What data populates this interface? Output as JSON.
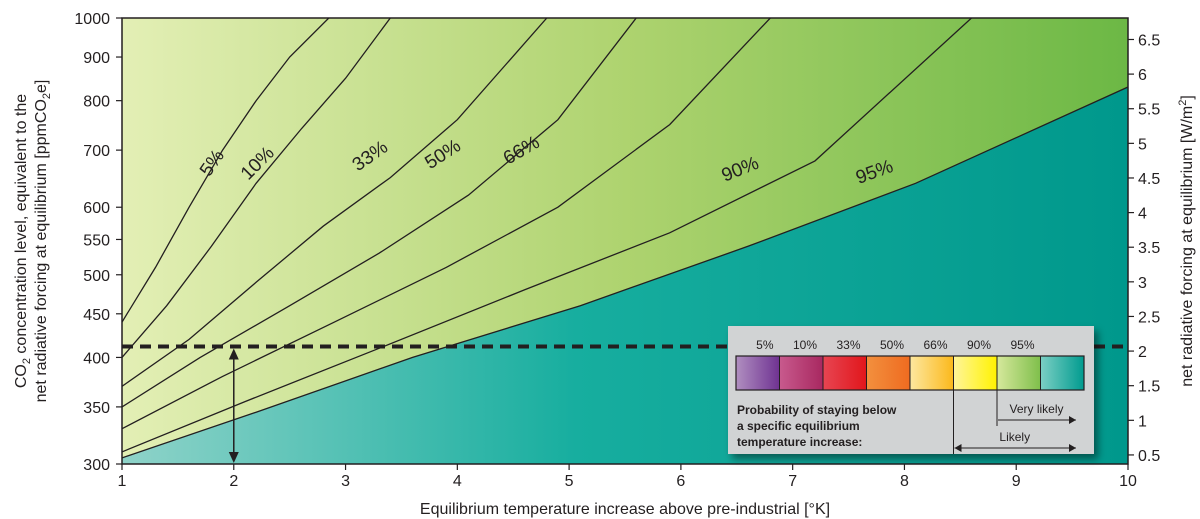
{
  "chart_data": {
    "type": "area",
    "xlabel": "Equilibrium temperature increase above pre-industrial [°K]",
    "ylabel_line1_pre": "CO",
    "ylabel_line1_sub": "2",
    "ylabel_line1_post": " concentration level, equivalent to the",
    "ylabel_line2_pre": "net radiative forcing at equilibrium [ppmCO",
    "ylabel_line2_sub": "2",
    "ylabel_line2_post": "e]",
    "y2label_pre": "net radiative forcing at equilibrium [W/m",
    "y2label_sup": "2",
    "y2label_post": "]",
    "xlim": [
      1,
      10
    ],
    "ylim": [
      300,
      1000
    ],
    "y_scale": "log",
    "x_ticks": [
      "1",
      "2",
      "3",
      "4",
      "5",
      "6",
      "7",
      "8",
      "9",
      "10"
    ],
    "y_ticks": [
      {
        "value": 300,
        "label": "300"
      },
      {
        "value": 350,
        "label": "350"
      },
      {
        "value": 400,
        "label": "400"
      },
      {
        "value": 450,
        "label": "450"
      },
      {
        "value": 500,
        "label": "500"
      },
      {
        "value": 550,
        "label": "550"
      },
      {
        "value": 600,
        "label": "600"
      },
      {
        "value": 700,
        "label": "700"
      },
      {
        "value": 800,
        "label": "800"
      },
      {
        "value": 900,
        "label": "900"
      },
      {
        "value": 1000,
        "label": "1000"
      }
    ],
    "y2_ticks": [
      {
        "forcing": 0.5,
        "label": "0.5"
      },
      {
        "forcing": 1,
        "label": "1"
      },
      {
        "forcing": 1.5,
        "label": "1.5"
      },
      {
        "forcing": 2,
        "label": "2"
      },
      {
        "forcing": 2.5,
        "label": "2.5"
      },
      {
        "forcing": 3,
        "label": "3"
      },
      {
        "forcing": 3.5,
        "label": "3.5"
      },
      {
        "forcing": 4,
        "label": "4"
      },
      {
        "forcing": 4.5,
        "label": "4.5"
      },
      {
        "forcing": 5,
        "label": "5"
      },
      {
        "forcing": 5.5,
        "label": "5.5"
      },
      {
        "forcing": 6,
        "label": "6"
      },
      {
        "forcing": 6.5,
        "label": "6.5"
      }
    ],
    "series": [
      {
        "name": "5%",
        "color": "#7a3596",
        "x": [
          1.0,
          1.3,
          1.6,
          1.9,
          2.2,
          2.5,
          2.85
        ],
        "y": [
          440,
          510,
          600,
          700,
          800,
          900,
          1000
        ]
      },
      {
        "name": "10%",
        "color": "#b42a6a",
        "x": [
          1.0,
          1.4,
          1.8,
          2.2,
          2.6,
          3.0,
          3.4
        ],
        "y": [
          400,
          460,
          540,
          640,
          740,
          850,
          1000
        ]
      },
      {
        "name": "33%",
        "color": "#e62129",
        "x": [
          1.0,
          1.6,
          2.2,
          2.8,
          3.4,
          4.0,
          4.8
        ],
        "y": [
          370,
          420,
          490,
          570,
          650,
          760,
          1000
        ]
      },
      {
        "name": "50%",
        "color": "#f0792b",
        "x": [
          1.0,
          1.7,
          2.5,
          3.3,
          4.1,
          4.9,
          5.6
        ],
        "y": [
          350,
          400,
          460,
          530,
          620,
          760,
          1000
        ]
      },
      {
        "name": "66%",
        "color": "#fbb81b",
        "x": [
          1.0,
          1.9,
          2.9,
          3.9,
          4.9,
          5.9,
          6.8
        ],
        "y": [
          330,
          380,
          440,
          510,
          600,
          750,
          1000
        ]
      },
      {
        "name": "90%",
        "color": "#fff200",
        "x": [
          1.0,
          2.1,
          3.3,
          4.6,
          5.9,
          7.2,
          8.6
        ],
        "y": [
          310,
          355,
          410,
          480,
          560,
          680,
          1000
        ]
      },
      {
        "name": "95%",
        "color": "#9fce63",
        "x": [
          1.0,
          2.2,
          3.6,
          5.1,
          6.6,
          8.1,
          10.0
        ],
        "y": [
          305,
          345,
          400,
          460,
          540,
          640,
          830
        ]
      }
    ],
    "region_colors": {
      "above_5": "#6f3292",
      "above_95": "#009b8f"
    },
    "contour_labels": [
      {
        "text": "5%",
        "x": 1.85,
        "y": 670,
        "angle": -55
      },
      {
        "text": "10%",
        "x": 2.25,
        "y": 668,
        "angle": -45
      },
      {
        "text": "33%",
        "x": 3.25,
        "y": 680,
        "angle": -35
      },
      {
        "text": "50%",
        "x": 3.9,
        "y": 683,
        "angle": -33
      },
      {
        "text": "66%",
        "x": 4.6,
        "y": 690,
        "angle": -30
      },
      {
        "text": "90%",
        "x": 6.55,
        "y": 655,
        "angle": -22
      },
      {
        "text": "95%",
        "x": 7.75,
        "y": 650,
        "angle": -20
      }
    ],
    "reference_line": {
      "y": 412,
      "arrow_x": 2,
      "style": "dashed"
    },
    "legend": {
      "labels": [
        "5%",
        "10%",
        "33%",
        "50%",
        "66%",
        "90%",
        "95%"
      ],
      "swatches": [
        [
          "#b08fc0",
          "#6f3292"
        ],
        [
          "#c85a8d",
          "#a82860"
        ],
        [
          "#e74552",
          "#e1161b"
        ],
        [
          "#f2903e",
          "#ef6b20"
        ],
        [
          "#fde8a0",
          "#fbb81b"
        ],
        [
          "#fff59a",
          "#fff200"
        ],
        [
          "#d6e89c",
          "#7fbf4b"
        ],
        [
          "#7ccfc4",
          "#009b8f"
        ]
      ],
      "caption": [
        "Probability of staying below",
        "a specific equilibrium",
        "temperature increase:"
      ],
      "very_likely": "Very likely",
      "likely": "Likely"
    }
  }
}
